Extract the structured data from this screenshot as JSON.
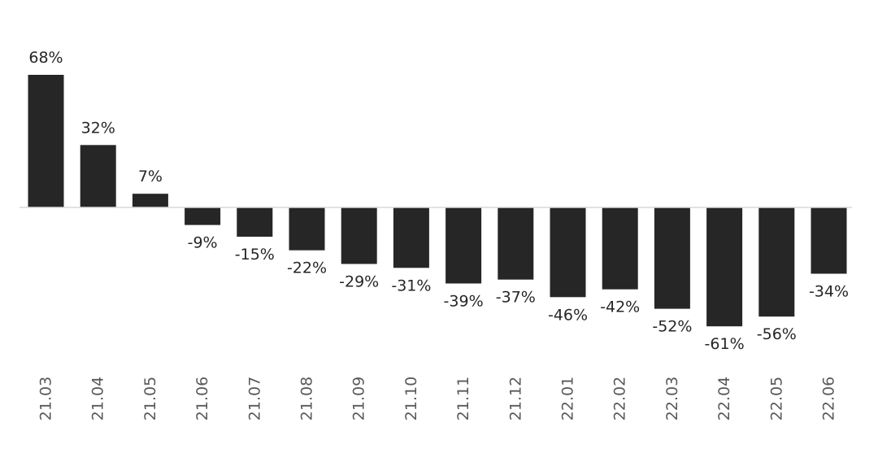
{
  "chart_data": {
    "type": "bar",
    "categories": [
      "21.03",
      "21.04",
      "21.05",
      "21.06",
      "21.07",
      "21.08",
      "21.09",
      "21.10",
      "21.11",
      "21.12",
      "22.01",
      "22.02",
      "22.03",
      "22.04",
      "22.05",
      "22.06"
    ],
    "values": [
      68,
      32,
      7,
      -9,
      -15,
      -22,
      -29,
      -31,
      -39,
      -37,
      -46,
      -42,
      -52,
      -61,
      -56,
      -34
    ],
    "data_labels": [
      "68%",
      "32%",
      "7%",
      "-9%",
      "-15%",
      "-22%",
      "-29%",
      "-31%",
      "-39%",
      "-37%",
      "-46%",
      "-42%",
      "-52%",
      "-61%",
      "-56%",
      "-34%"
    ],
    "title": "",
    "xlabel": "",
    "ylabel": "",
    "ylim": [
      -68,
      68
    ],
    "grid": false,
    "bar_color": "#262626",
    "axis_color": "#d9d9d9",
    "tick_label_orientation": "vertical"
  }
}
